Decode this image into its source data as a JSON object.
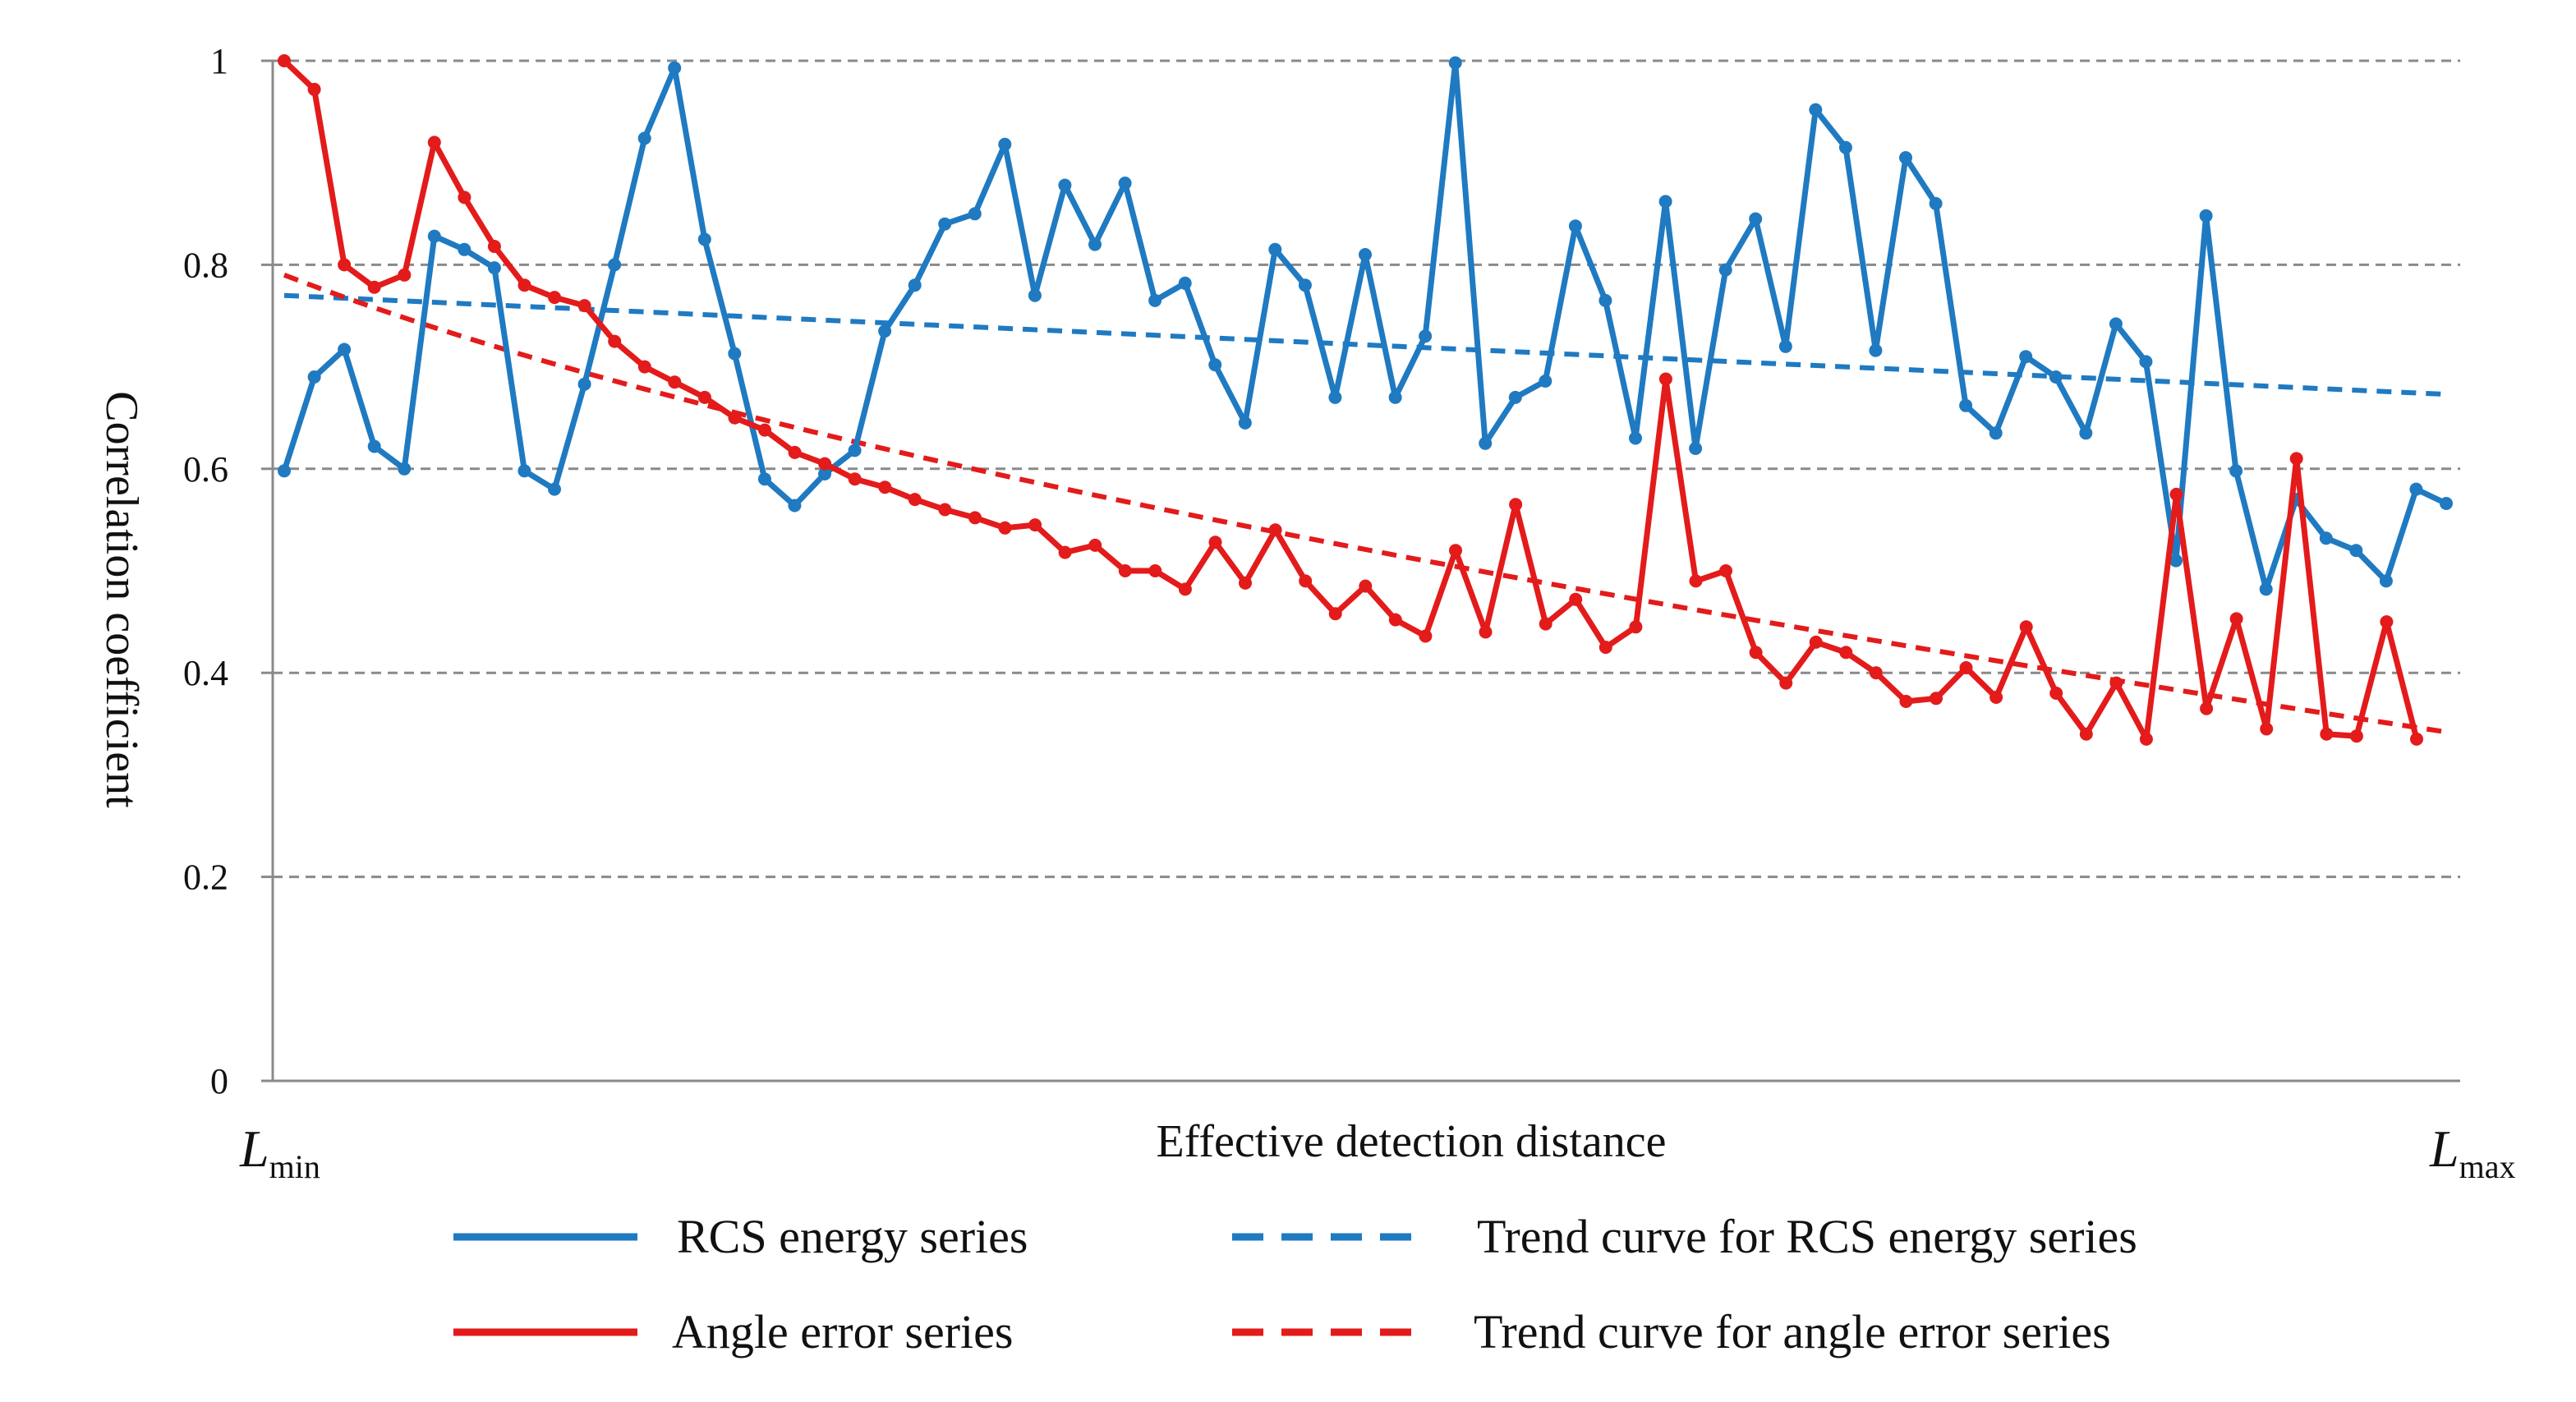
{
  "chart_data": {
    "type": "line",
    "xlabel": "Effective detection distance",
    "ylabel": "Correlation coefficient",
    "x_min_label": {
      "main": "L",
      "sub": "min"
    },
    "x_max_label": {
      "main": "L",
      "sub": "max"
    },
    "ylim": [
      0,
      1
    ],
    "yticks": [
      0,
      0.2,
      0.4,
      0.6,
      0.8,
      1
    ],
    "ytick_labels": [
      "0",
      "0.2",
      "0.4",
      "0.6",
      "0.8",
      "1"
    ],
    "grid": "horizontal dashed",
    "legend_position": "bottom",
    "series": [
      {
        "name": "RCS energy series",
        "style": "solid-markers",
        "color": "#1F7AC1",
        "values": [
          0.598,
          0.69,
          0.717,
          0.622,
          0.6,
          0.828,
          0.815,
          0.797,
          0.598,
          0.58,
          0.683,
          0.8,
          0.924,
          0.993,
          0.825,
          0.713,
          0.59,
          0.564,
          0.595,
          0.618,
          0.735,
          0.78,
          0.84,
          0.85,
          0.918,
          0.77,
          0.878,
          0.82,
          0.88,
          0.765,
          0.782,
          0.702,
          0.645,
          0.815,
          0.78,
          0.67,
          0.81,
          0.67,
          0.73,
          0.998,
          0.625,
          0.67,
          0.686,
          0.838,
          0.765,
          0.63,
          0.862,
          0.62,
          0.795,
          0.845,
          0.72,
          0.952,
          0.915,
          0.716,
          0.905,
          0.86,
          0.662,
          0.635,
          0.71,
          0.69,
          0.635,
          0.742,
          0.705,
          0.51,
          0.848,
          0.598,
          0.482,
          0.57,
          0.532,
          0.52,
          0.49,
          0.58,
          0.566
        ]
      },
      {
        "name": "Angle error series",
        "style": "solid-markers",
        "color": "#E31B1B",
        "values": [
          1.0,
          0.972,
          0.8,
          0.778,
          0.79,
          0.92,
          0.866,
          0.818,
          0.78,
          0.768,
          0.76,
          0.725,
          0.7,
          0.685,
          0.67,
          0.65,
          0.638,
          0.616,
          0.605,
          0.59,
          0.582,
          0.57,
          0.56,
          0.552,
          0.542,
          0.545,
          0.518,
          0.525,
          0.5,
          0.5,
          0.482,
          0.528,
          0.488,
          0.54,
          0.49,
          0.458,
          0.485,
          0.452,
          0.436,
          0.52,
          0.44,
          0.565,
          0.448,
          0.472,
          0.425,
          0.445,
          0.688,
          0.49,
          0.5,
          0.42,
          0.39,
          0.43,
          0.42,
          0.4,
          0.372,
          0.375,
          0.405,
          0.376,
          0.445,
          0.38,
          0.34,
          0.39,
          0.335,
          0.575,
          0.365,
          0.453,
          0.345,
          0.61,
          0.34,
          0.338,
          0.45,
          0.335
        ]
      },
      {
        "name": "Trend curve for RCS energy series",
        "style": "dashed",
        "color": "#1F7AC1",
        "fn": "linear",
        "start": 0.77,
        "end": 0.673
      },
      {
        "name": "Trend curve for angle error series",
        "style": "dashed",
        "color": "#E31B1B",
        "fn": "logarithmic",
        "start": 0.79,
        "end": 0.342
      }
    ]
  }
}
